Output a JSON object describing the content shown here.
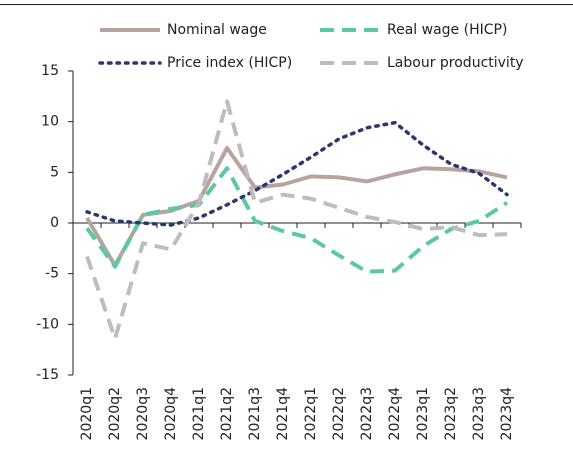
{
  "chart_data": {
    "type": "line",
    "categories": [
      "2020q1",
      "2020q2",
      "2020q3",
      "2020q4",
      "2021q1",
      "2021q2",
      "2021q3",
      "2021q4",
      "2022q1",
      "2022q2",
      "2022q3",
      "2022q4",
      "2023q1",
      "2023q2",
      "2023q3",
      "2023q4"
    ],
    "series": [
      {
        "name": "Nominal wage",
        "color": "#b8a49e",
        "dash": "solid",
        "values": [
          0.5,
          -4.2,
          0.8,
          1.2,
          2.2,
          7.4,
          3.5,
          3.8,
          4.6,
          4.5,
          4.1,
          4.8,
          5.4,
          5.3,
          5.1,
          4.5
        ]
      },
      {
        "name": "Real wage (HICP)",
        "color": "#5cc8a0",
        "dash": "dashed",
        "values": [
          -0.5,
          -4.3,
          0.8,
          1.4,
          1.8,
          5.4,
          0.2,
          -0.8,
          -1.5,
          -3.2,
          -4.8,
          -4.7,
          -2.3,
          -0.6,
          0.2,
          2.0
        ]
      },
      {
        "name": "Price index (HICP)",
        "color": "#2b3770",
        "dash": "dotted",
        "values": [
          1.1,
          0.2,
          0.0,
          -0.2,
          0.5,
          1.8,
          3.2,
          4.8,
          6.5,
          8.3,
          9.4,
          9.9,
          7.7,
          5.8,
          4.9,
          2.8
        ]
      },
      {
        "name": "Labour productivity",
        "color": "#bdbdbd",
        "dash": "dashed",
        "values": [
          -3.3,
          -11.4,
          -2.0,
          -2.6,
          2.0,
          12.0,
          2.0,
          2.8,
          2.4,
          1.5,
          0.6,
          0.1,
          -0.6,
          -0.4,
          -1.2,
          -1.1
        ]
      }
    ],
    "ylim": [
      -15,
      15
    ],
    "yticks": [
      -15,
      -10,
      -5,
      0,
      5,
      10,
      15
    ],
    "legend": "top"
  }
}
